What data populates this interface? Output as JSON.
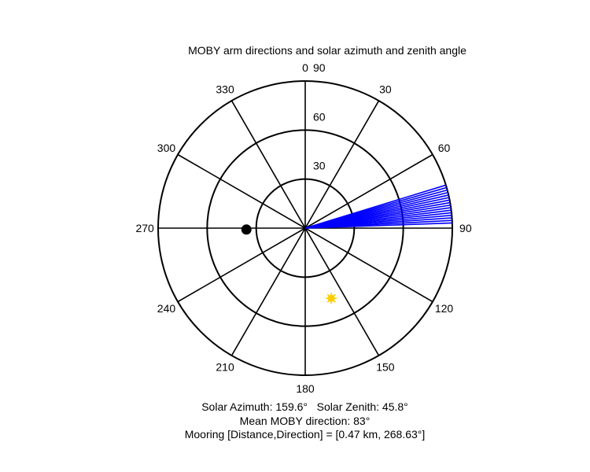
{
  "chart_data": {
    "type": "polar",
    "title": "MOBY arm directions and solar azimuth and zenith angle",
    "azimuth_labels": [
      "0",
      "30",
      "60",
      "90",
      "120",
      "150",
      "180",
      "210",
      "240",
      "270",
      "300",
      "330"
    ],
    "azimuth_ticks": [
      0,
      30,
      60,
      90,
      120,
      150,
      180,
      210,
      240,
      270,
      300,
      330
    ],
    "radial_rings": [
      30,
      60,
      90
    ],
    "radial_labels": [
      "30",
      "60",
      "90"
    ],
    "radial_max": 90,
    "grid": true,
    "series": [
      {
        "marker": "line-fan",
        "color": "#0000ff",
        "directions_deg": [
          73,
          74,
          75,
          76,
          77,
          78,
          79,
          80,
          81,
          82,
          83,
          84,
          85,
          86,
          87,
          88
        ],
        "radius": 90
      },
      {
        "marker": "filled-circle",
        "color": "#000000",
        "direction_deg": 268.63,
        "radius": 36
      },
      {
        "marker": "sun",
        "color": "#ffcc00",
        "direction_deg": 159.6,
        "radius": 45.8
      }
    ]
  },
  "annotations": {
    "solar": "Solar Azimuth: 159.6°   Solar Zenith: 45.8°",
    "moby": "Mean MOBY direction: 83°",
    "mooring": "Mooring [Distance,Direction] = [0.47 km, 268.63°]"
  }
}
